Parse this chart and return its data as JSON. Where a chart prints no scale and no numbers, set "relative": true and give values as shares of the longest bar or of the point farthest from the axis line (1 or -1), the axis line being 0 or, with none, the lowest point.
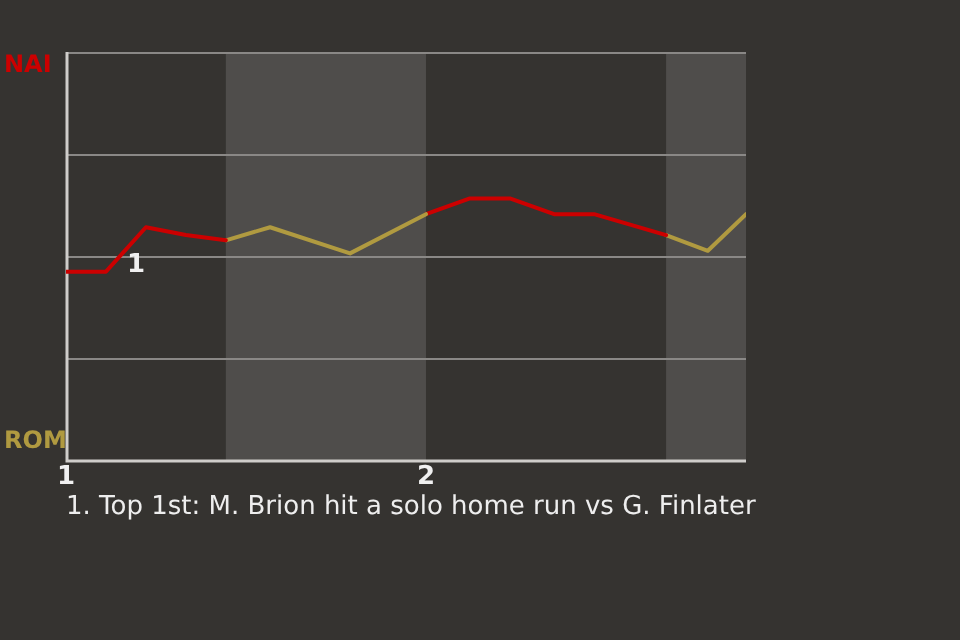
{
  "chart_data": {
    "type": "line",
    "relative": true,
    "series": [
      {
        "color": "#cc0000",
        "x": [
          1,
          1.111,
          1.222,
          1.333,
          1.444
        ],
        "values": [
          0.72,
          0.72,
          0.89,
          0.86,
          0.84
        ]
      },
      {
        "color": "#b09a40",
        "x": [
          1.444,
          1.567,
          1.789,
          2
        ],
        "values": [
          0.84,
          0.89,
          0.79,
          0.94
        ]
      },
      {
        "color": "#cc0000",
        "x": [
          2,
          2.122,
          2.233,
          2.356,
          2.467,
          2.667
        ],
        "values": [
          0.94,
          1,
          1,
          0.94,
          0.94,
          0.86
        ]
      },
      {
        "color": "#b09a40",
        "x": [
          2.667,
          2.783,
          2.889
        ],
        "values": [
          0.86,
          0.8,
          0.94
        ]
      }
    ],
    "xlim": [
      1,
      2.889
    ],
    "xticks": [
      1,
      2
    ],
    "ref_lines": [
      {
        "axis": "y",
        "value": 0.39,
        "color": "#8a8886"
      },
      {
        "axis": "y",
        "value": 0.78,
        "color": "#8a8886"
      },
      {
        "axis": "y",
        "value": 1.17,
        "color": "#8a8886"
      },
      {
        "axis": "y",
        "value": 1.56,
        "color": "#8a8886"
      }
    ],
    "bands": [
      {
        "axis": "x",
        "from": 1.444,
        "to": 2,
        "color": "#4f4d4b"
      },
      {
        "axis": "x",
        "from": 2.667,
        "to": 2.889,
        "color": "#4f4d4b"
      }
    ],
    "marker": "none",
    "line_style": "solid",
    "annotations": [
      "NAI",
      "ROM",
      {
        "text": "1",
        "x": 1.222,
        "y": 0.89
      },
      "1. Top 1st: M. Brion hit a solo home run vs G. Finlater"
    ]
  }
}
